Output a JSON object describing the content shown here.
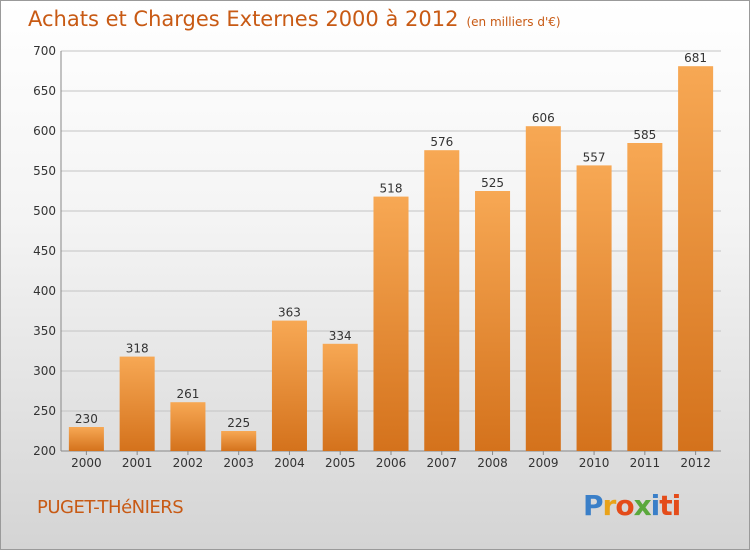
{
  "title": "Achats et Charges Externes 2000 à 2012",
  "unit_note": "(en milliers d'€)",
  "town": "PUGET-THéNIERS",
  "brand": "Proxiti",
  "colors": {
    "bar": "#f29a3c",
    "bar_dark": "#d87a22",
    "title": "#c85a14",
    "grid": "#c4c4c4"
  },
  "chart_data": {
    "type": "bar",
    "categories": [
      "2000",
      "2001",
      "2002",
      "2003",
      "2004",
      "2005",
      "2006",
      "2007",
      "2008",
      "2009",
      "2010",
      "2011",
      "2012"
    ],
    "values": [
      230,
      318,
      261,
      225,
      363,
      334,
      518,
      576,
      525,
      606,
      557,
      585,
      681
    ],
    "ylim": [
      200,
      700
    ],
    "yticks": [
      200,
      250,
      300,
      350,
      400,
      450,
      500,
      550,
      600,
      650,
      700
    ],
    "grid": true
  }
}
